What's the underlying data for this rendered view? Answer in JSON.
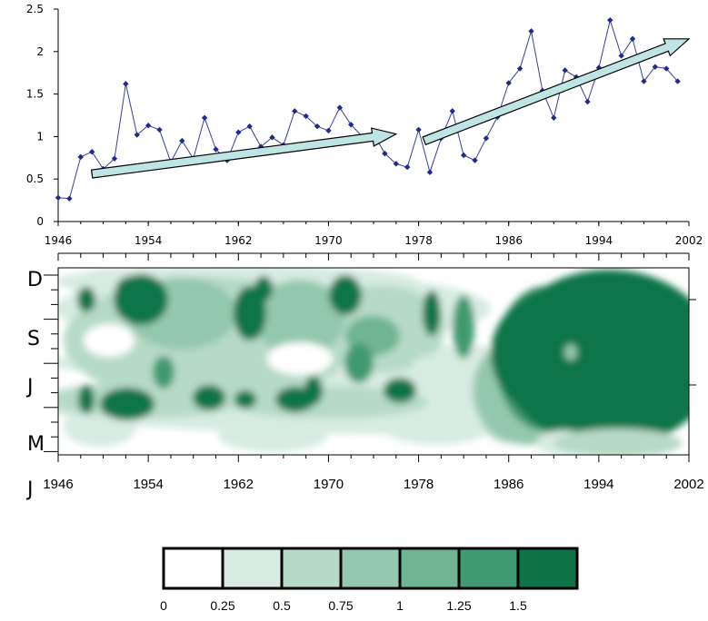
{
  "chart_data": [
    {
      "type": "line",
      "x": [
        1946,
        1947,
        1948,
        1949,
        1950,
        1951,
        1952,
        1953,
        1954,
        1955,
        1956,
        1957,
        1958,
        1959,
        1960,
        1961,
        1962,
        1963,
        1964,
        1965,
        1966,
        1967,
        1968,
        1969,
        1970,
        1971,
        1972,
        1973,
        1974,
        1975,
        1976,
        1977,
        1978,
        1979,
        1980,
        1981,
        1982,
        1983,
        1984,
        1985,
        1986,
        1987,
        1988,
        1989,
        1990,
        1991,
        1992,
        1993,
        1994,
        1995,
        1996,
        1997,
        1998,
        1999,
        2000,
        2001,
        2002
      ],
      "y": [
        0.28,
        0.27,
        0.76,
        0.82,
        0.62,
        0.74,
        1.62,
        1.02,
        1.13,
        1.08,
        0.7,
        0.95,
        0.74,
        1.22,
        0.85,
        0.72,
        1.05,
        1.12,
        0.88,
        0.99,
        0.9,
        1.3,
        1.24,
        1.12,
        1.07,
        1.34,
        1.14,
        1.0,
        1.04,
        0.8,
        0.68,
        0.64,
        1.08,
        0.58,
        0.98,
        1.3,
        0.78,
        0.72,
        0.98,
        1.23,
        1.63,
        1.8,
        2.24,
        1.54,
        1.22,
        1.78,
        1.7,
        1.41,
        1.81,
        2.37,
        1.95,
        2.15,
        1.65,
        1.82,
        1.8,
        1.65,
        null
      ],
      "xticks": [
        "1946",
        "1954",
        "1962",
        "1970",
        "1978",
        "1986",
        "1994",
        "2002"
      ],
      "yticks": [
        "0",
        "0.5",
        "1",
        "1.5",
        "2",
        "2.5"
      ],
      "xlim": [
        1946,
        2002
      ],
      "ylim": [
        0,
        2.5
      ],
      "trends": [
        {
          "x": [
            1949,
            1976
          ],
          "y": [
            0.56,
            1.03
          ]
        },
        {
          "x": [
            1978.5,
            2002
          ],
          "y": [
            0.95,
            2.15
          ]
        }
      ],
      "colors": {
        "line": "#3a3f9e",
        "marker": "#1e2a8c",
        "arrow_fill": "#bfe4e4"
      }
    },
    {
      "type": "heatmap",
      "y_labels": [
        "D",
        "S",
        "J",
        "M",
        "J"
      ],
      "xticks": [
        "1946",
        "1954",
        "1962",
        "1970",
        "1978",
        "1986",
        "1994",
        "2002"
      ],
      "xlim": [
        1946,
        2002
      ],
      "levels": [
        "0",
        "0.25",
        "0.5",
        "0.75",
        "1",
        "1.25",
        "1.5"
      ],
      "colors": [
        "#ffffff",
        "#d7ebe2",
        "#b6dac8",
        "#94c8ae",
        "#6fb592",
        "#3f9a71",
        "#0e7448"
      ]
    }
  ]
}
